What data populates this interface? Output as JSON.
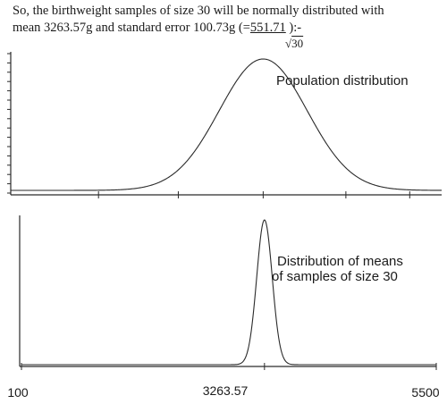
{
  "text": {
    "line1": "So, the birthweight samples of size 30 will be normally distributed with",
    "line2_a": "mean 3263.57g and standard error 100.73g  (=",
    "line2_b": "551.71",
    "line2_c": " ):-",
    "sqrt_symbol": "√",
    "sqrt_value": "30"
  },
  "chart_data": [
    {
      "type": "line",
      "label": "Population distribution",
      "distribution": "normal",
      "mean": 3263.57,
      "sd": 551.71,
      "xlim": [
        100,
        5500
      ],
      "grid": false
    },
    {
      "type": "line",
      "label_lines": [
        "Distribution of means",
        "of samples of size 30"
      ],
      "distribution": "normal",
      "mean": 3263.57,
      "sd": 100.73,
      "xlim": [
        100,
        5500
      ],
      "tick_labels": [
        "100",
        "3263.57",
        "5500"
      ],
      "grid": false
    }
  ]
}
